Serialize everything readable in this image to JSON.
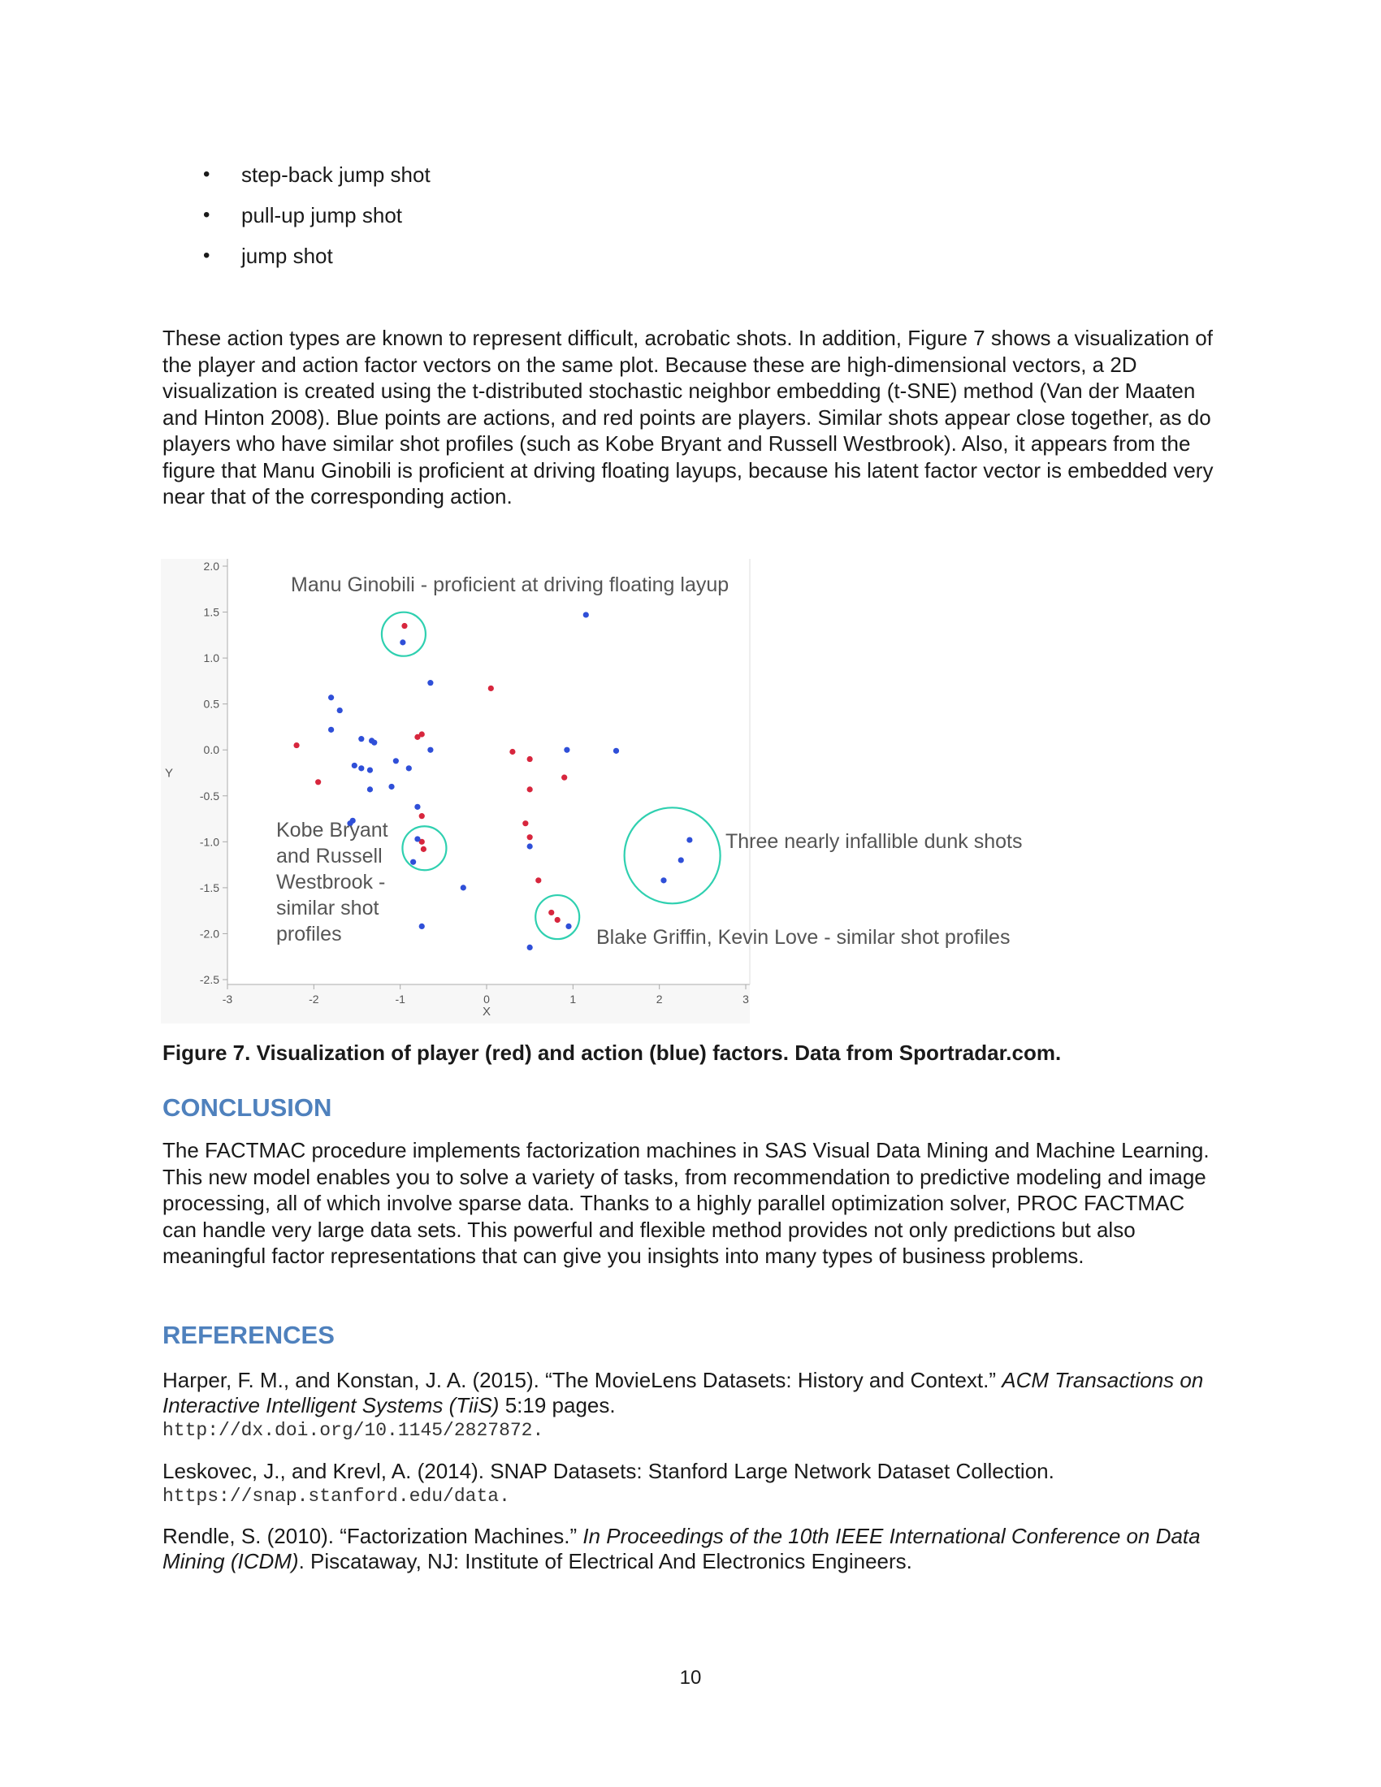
{
  "bullets": [
    "step-back jump shot",
    "pull-up jump shot",
    "jump shot"
  ],
  "intro_paragraph": "These action types are known to represent difficult, acrobatic shots. In addition, Figure 7 shows a visualization of the player and action factor vectors on the same plot. Because these are high-dimensional vectors, a 2D visualization is created using the t-distributed stochastic neighbor embedding (t-SNE) method (Van der Maaten and Hinton 2008). Blue points are actions, and red points are players. Similar shots appear close together, as do players who have similar shot profiles (such as Kobe Bryant and Russell Westbrook). Also, it appears from the figure that Manu Ginobili is proficient at driving floating layups, because his latent factor vector is embedded very near that of the corresponding action.",
  "figure_caption": "Figure 7. Visualization of player (red) and action (blue) factors. Data from Sportradar.com.",
  "chart_data": {
    "type": "scatter",
    "xlabel": "X",
    "ylabel": "Y",
    "xlim": [
      -3,
      3
    ],
    "ylim": [
      -2.5,
      2.0
    ],
    "x_ticks": [
      "-3",
      "-2",
      "-1",
      "0",
      "1",
      "2",
      "3"
    ],
    "y_ticks": [
      "2.0",
      "1.5",
      "1.0",
      "0.5",
      "0.0",
      "-0.5",
      "-1.0",
      "-1.5",
      "-2.0",
      "-2.5"
    ],
    "colors": {
      "players": "#d7263d",
      "actions": "#2f4fd8",
      "circle": "#2fd0b0"
    },
    "series": [
      {
        "values": [
          [
            -0.95,
            1.35
          ],
          [
            0.05,
            0.67
          ],
          [
            -0.75,
            0.17
          ],
          [
            -0.8,
            0.14
          ],
          [
            -2.2,
            0.05
          ],
          [
            -1.95,
            -0.35
          ],
          [
            0.3,
            -0.02
          ],
          [
            0.5,
            -0.1
          ],
          [
            0.9,
            -0.3
          ],
          [
            0.5,
            -0.43
          ],
          [
            0.45,
            -0.8
          ],
          [
            0.5,
            -0.95
          ],
          [
            -0.75,
            -0.72
          ],
          [
            -0.75,
            -1.0
          ],
          [
            -0.73,
            -1.08
          ],
          [
            0.6,
            -1.42
          ],
          [
            0.75,
            -1.77
          ],
          [
            0.82,
            -1.85
          ]
        ]
      },
      {
        "values": [
          [
            -0.97,
            1.17
          ],
          [
            1.15,
            1.47
          ],
          [
            -0.65,
            0.73
          ],
          [
            -1.8,
            0.57
          ],
          [
            -1.7,
            0.43
          ],
          [
            -1.8,
            0.22
          ],
          [
            -1.45,
            0.12
          ],
          [
            -1.33,
            0.1
          ],
          [
            -1.3,
            0.08
          ],
          [
            -0.65,
            0.0
          ],
          [
            0.93,
            0.0
          ],
          [
            1.5,
            -0.01
          ],
          [
            -1.53,
            -0.17
          ],
          [
            -1.45,
            -0.2
          ],
          [
            -1.35,
            -0.22
          ],
          [
            -1.05,
            -0.12
          ],
          [
            -0.9,
            -0.2
          ],
          [
            -1.35,
            -0.43
          ],
          [
            -1.1,
            -0.4
          ],
          [
            -0.8,
            -0.62
          ],
          [
            -1.55,
            -0.77
          ],
          [
            -1.58,
            -0.8
          ],
          [
            -0.8,
            -0.97
          ],
          [
            0.5,
            -1.05
          ],
          [
            -0.85,
            -1.22
          ],
          [
            -0.27,
            -1.5
          ],
          [
            -0.75,
            -1.92
          ],
          [
            0.5,
            -2.15
          ],
          [
            0.95,
            -1.92
          ],
          [
            2.35,
            -0.98
          ],
          [
            2.25,
            -1.2
          ],
          [
            2.05,
            -1.42
          ]
        ]
      }
    ],
    "annotations": [
      "Manu Ginobili - proficient at driving floating layup",
      "Kobe Bryant",
      "and Russell",
      "Westbrook -",
      "similar shot",
      "profiles",
      "Three nearly infallible dunk shots",
      "Blake Griffin, Kevin Love - similar shot profiles"
    ]
  },
  "conclusion": {
    "heading": "CONCLUSION",
    "text": "The FACTMAC procedure implements factorization machines in SAS Visual Data Mining and Machine Learning. This new model enables you to solve a variety of tasks, from recommendation to predictive modeling and image processing, all of which involve sparse data. Thanks to a highly parallel optimization solver, PROC FACTMAC can handle very large data sets. This powerful and flexible method provides not only predictions but also meaningful factor representations that can give you insights into many types of business problems."
  },
  "references": {
    "heading": "REFERENCES",
    "items": [
      {
        "pre": "Harper, F. M., and Konstan, J. A. (2015). “The MovieLens Datasets: History and Context.” ",
        "italic": "ACM Transactions on Interactive Intelligent Systems (TiiS)",
        "post": " 5:19 pages.",
        "url": "http://dx.doi.org/10.1145/2827872."
      },
      {
        "pre": "Leskovec, J., and Krevl, A. (2014). SNAP Datasets: Stanford Large Network Dataset Collection.",
        "italic": "",
        "post": "",
        "url": "https://snap.stanford.edu/data."
      },
      {
        "pre": "Rendle, S. (2010). “Factorization Machines.” ",
        "italic": "In Proceedings of the 10th IEEE International Conference on Data Mining (ICDM)",
        "post": ". Piscataway, NJ: Institute of Electrical And Electronics Engineers.",
        "url": ""
      }
    ]
  },
  "page_number": "10"
}
